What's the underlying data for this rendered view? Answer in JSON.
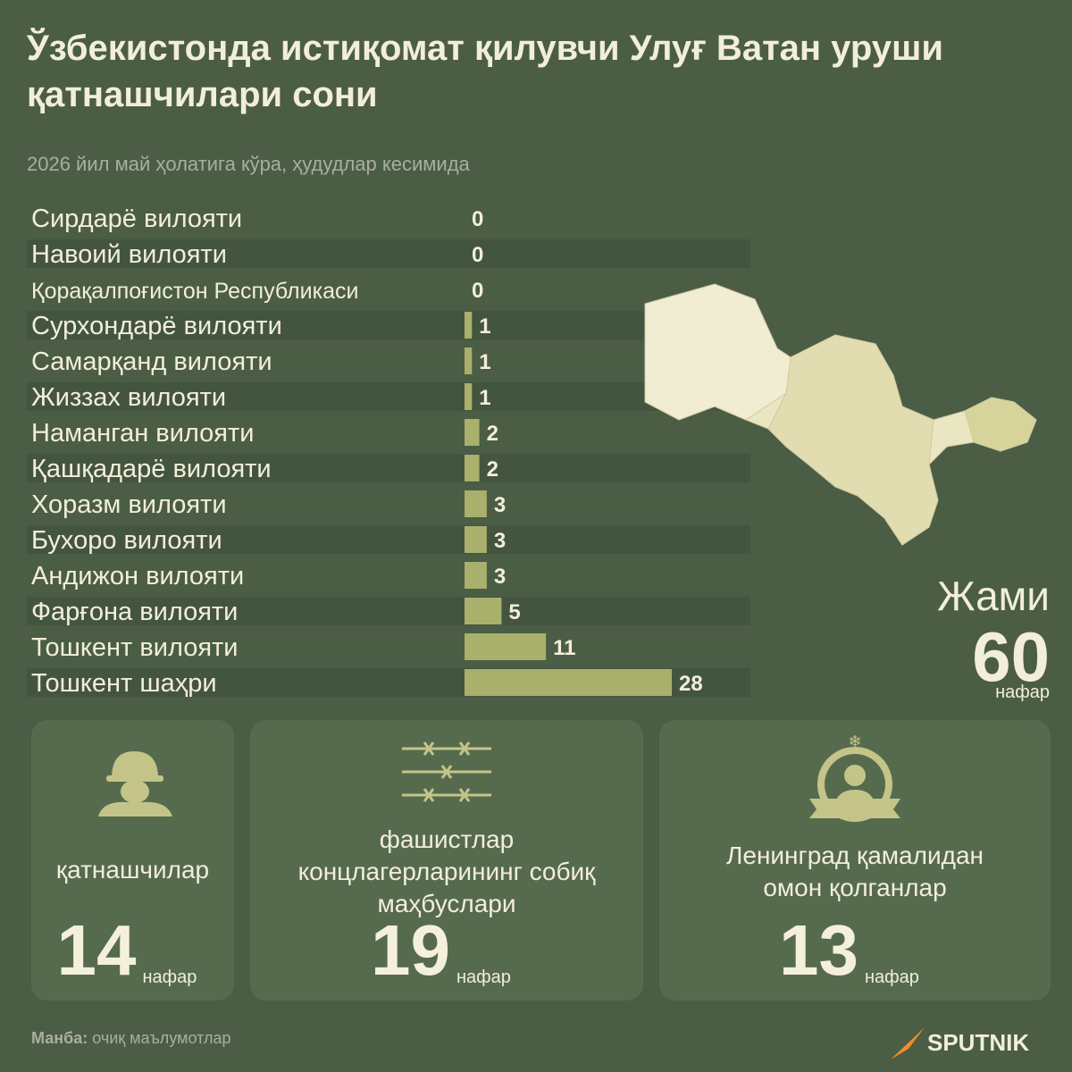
{
  "chart_data": {
    "type": "bar",
    "title": "Ўзбекистонда истиқомат қилувчи Улуғ Ватан уруши қатнашчилари сони",
    "subtitle": "2026 йил май ҳолатига кўра, ҳудудлар кесимида",
    "categories": [
      "Сирдарё вилояти",
      "Навоий вилояти",
      "Қорақалпоғистон Республикаси",
      "Сурхондарё вилояти",
      "Самарқанд вилояти",
      "Жиззах вилояти",
      "Наманган вилояти",
      "Қашқадарё вилояти",
      "Хоразм вилояти",
      "Бухоро вилояти",
      "Андижон вилояти",
      "Фарғона вилояти",
      "Тошкент вилояти",
      "Тошкент шаҳри"
    ],
    "values": [
      0,
      0,
      0,
      1,
      1,
      1,
      2,
      2,
      3,
      3,
      3,
      5,
      11,
      28
    ],
    "color": "#a9b06c"
  },
  "total": {
    "label": "Жами",
    "value": 60
  },
  "unit": "нафар",
  "cards": [
    {
      "label": [
        "қатнашчилар"
      ],
      "value": 14
    },
    {
      "label": [
        "фашистлар",
        "концлагерларининг собиқ",
        "маҳбуслари"
      ],
      "value": 19
    },
    {
      "label": [
        "Ленинград қамалидан",
        "омон қолганлар"
      ],
      "value": 13
    }
  ],
  "source": {
    "label": "Манба:",
    "text": "очиқ маълумотлар"
  },
  "brand": "SPUTNIK"
}
